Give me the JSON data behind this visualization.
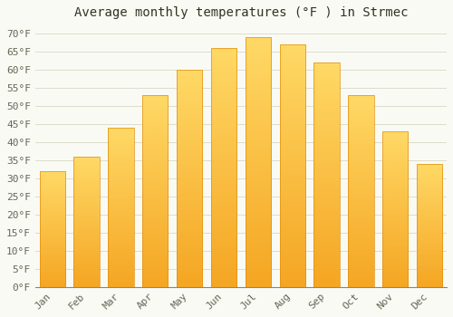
{
  "title": "Average monthly temperatures (°F ) in Strmec",
  "months": [
    "Jan",
    "Feb",
    "Mar",
    "Apr",
    "May",
    "Jun",
    "Jul",
    "Aug",
    "Sep",
    "Oct",
    "Nov",
    "Dec"
  ],
  "values": [
    32,
    36,
    44,
    53,
    60,
    66,
    69,
    67,
    62,
    53,
    43,
    34
  ],
  "bar_color_bottom": "#F5A623",
  "bar_color_top": "#FFD966",
  "bar_edge_color": "#E09010",
  "background_color": "#FAFAF5",
  "grid_color": "#DDDDCC",
  "ylim": [
    0,
    72
  ],
  "yticks": [
    0,
    5,
    10,
    15,
    20,
    25,
    30,
    35,
    40,
    45,
    50,
    55,
    60,
    65,
    70
  ],
  "title_fontsize": 10,
  "tick_fontsize": 8,
  "tick_color": "#666655",
  "spine_color": "#888877"
}
